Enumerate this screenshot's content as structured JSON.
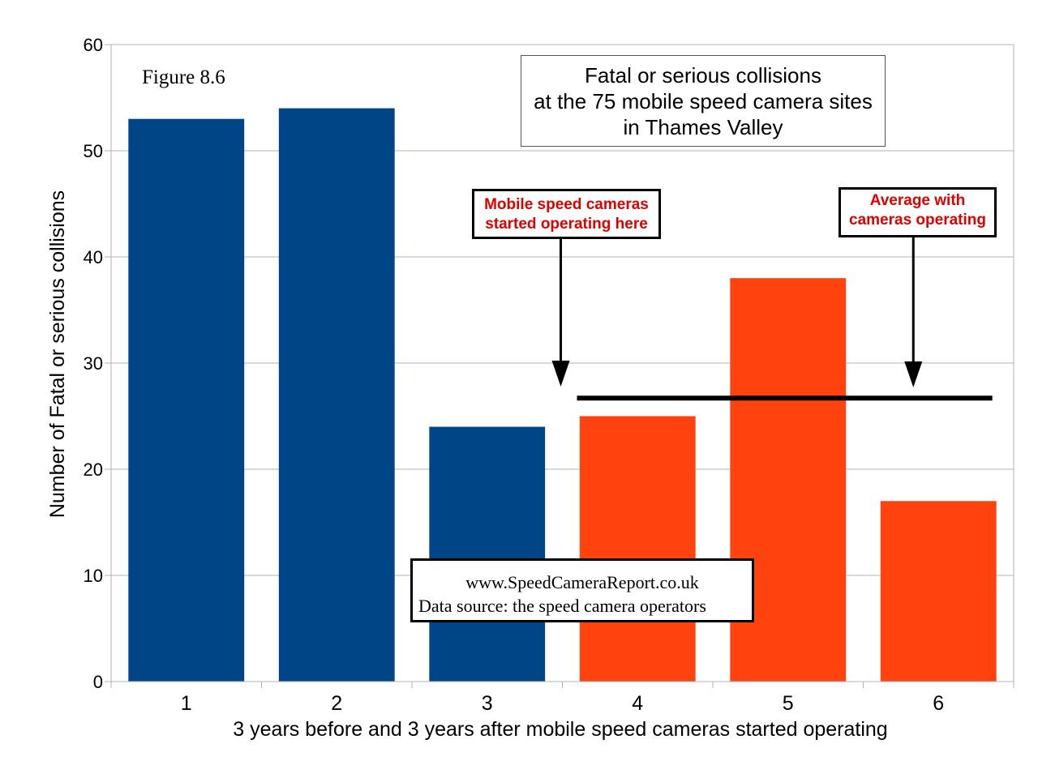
{
  "chart_data": {
    "type": "bar",
    "title_lines": [
      "Fatal or serious collisions",
      "at the 75 mobile speed camera sites",
      "in Thames Valley"
    ],
    "figure_label": "Figure 8.6",
    "xlabel": "3 years before and 3 years after mobile speed cameras started operating",
    "ylabel": "Number of Fatal or serious collisions",
    "categories": [
      "1",
      "2",
      "3",
      "4",
      "5",
      "6"
    ],
    "values": [
      53,
      54,
      24,
      25,
      38,
      17
    ],
    "bar_colors": [
      "#004586",
      "#004586",
      "#004586",
      "#ff420e",
      "#ff420e",
      "#ff420e"
    ],
    "ylim": [
      0,
      60
    ],
    "yticks": [
      0,
      10,
      20,
      30,
      40,
      50,
      60
    ],
    "grid": true,
    "average_line": {
      "value": 26.7,
      "from_category": "4",
      "to_category": "6"
    },
    "annotations": [
      {
        "lines": [
          "Mobile speed cameras",
          "started operating here"
        ],
        "color": "#e00000"
      },
      {
        "lines": [
          "Average with",
          "cameras operating"
        ],
        "color": "#e00000"
      }
    ],
    "source_lines": [
      "www.SpeedCameraReport.co.uk",
      "Data source: the speed camera operators"
    ]
  }
}
